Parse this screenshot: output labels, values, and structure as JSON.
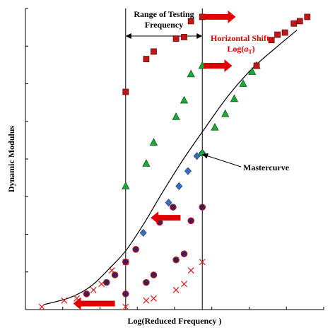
{
  "chart_data": {
    "type": "scatter",
    "title": "",
    "xlabel": "Log(Reduced Frequency )",
    "ylabel": "Dynamic Modulus",
    "xlim": [
      0,
      10
    ],
    "ylim": [
      0,
      10
    ],
    "x_ticks": 8,
    "y_ticks": 8,
    "grid": false,
    "testing_range": [
      3.36,
      5.93
    ],
    "annotations": {
      "range_title_line1": "Range of Testing",
      "range_title_line2": "Frequency",
      "shift_line1": "Horizontal Shift,",
      "shift_line2_prefix": "Log(",
      "shift_line2_italic": "a",
      "shift_line2_sub": "T",
      "shift_line2_suffix": ")",
      "mastercurve": "Mastercurve"
    },
    "mastercurve": [
      [
        0.6,
        0.16
      ],
      [
        1.5,
        0.4
      ],
      [
        2.2,
        0.78
      ],
      [
        2.9,
        1.45
      ],
      [
        3.4,
        2.0
      ],
      [
        4.0,
        2.9
      ],
      [
        4.6,
        3.9
      ],
      [
        5.3,
        5.0
      ],
      [
        6.0,
        6.0
      ],
      [
        6.8,
        7.1
      ],
      [
        7.6,
        8.0
      ],
      [
        8.4,
        8.7
      ],
      [
        9.1,
        9.28
      ]
    ],
    "series": [
      {
        "marker": "x",
        "color": "#e02020",
        "original": [
          [
            3.36,
            0.09
          ],
          [
            4.05,
            0.3
          ],
          [
            4.3,
            0.37
          ],
          [
            5.05,
            0.65
          ],
          [
            5.32,
            0.85
          ],
          [
            5.55,
            1.3
          ],
          [
            5.93,
            1.58
          ]
        ],
        "shifted": [
          [
            0.55,
            0.09
          ],
          [
            1.3,
            0.3
          ],
          [
            1.72,
            0.37
          ],
          [
            2.28,
            0.65
          ],
          [
            2.55,
            0.85
          ],
          [
            2.9,
            1.3
          ],
          [
            3.36,
            1.58
          ]
        ]
      },
      {
        "marker": "circle",
        "color": "#3a2060",
        "original": [
          [
            3.36,
            0.52
          ],
          [
            4.05,
            0.9
          ],
          [
            4.3,
            1.15
          ],
          [
            5.05,
            1.65
          ],
          [
            5.32,
            1.85
          ],
          [
            5.55,
            2.95
          ],
          [
            5.93,
            3.4
          ]
        ],
        "shifted": [
          [
            2.05,
            0.52
          ],
          [
            2.72,
            0.9
          ],
          [
            3.0,
            1.15
          ],
          [
            3.36,
            1.58
          ],
          [
            3.7,
            2.0
          ],
          [
            4.5,
            2.9
          ],
          [
            4.95,
            3.4
          ]
        ]
      },
      {
        "marker": "diamond",
        "color": "#3a6bbb",
        "original": [],
        "shifted": [
          [
            3.95,
            2.55
          ],
          [
            4.8,
            3.55
          ],
          [
            5.15,
            4.1
          ],
          [
            5.45,
            4.6
          ],
          [
            5.75,
            5.1
          ],
          [
            5.93,
            5.2
          ]
        ]
      },
      {
        "marker": "triangle",
        "color": "#1ea83a",
        "original": [
          [
            3.36,
            4.1
          ],
          [
            4.05,
            4.85
          ],
          [
            4.3,
            5.55
          ],
          [
            5.05,
            6.4
          ],
          [
            5.32,
            6.95
          ],
          [
            5.55,
            7.82
          ],
          [
            5.93,
            8.1
          ]
        ],
        "shifted": [
          [
            5.93,
            5.2
          ],
          [
            6.35,
            6.05
          ],
          [
            6.7,
            6.5
          ],
          [
            7.0,
            7.0
          ],
          [
            7.3,
            7.5
          ],
          [
            7.6,
            7.9
          ],
          [
            7.75,
            8.1
          ]
        ]
      },
      {
        "marker": "square",
        "color": "#c01818",
        "original": [
          [
            3.36,
            7.23
          ],
          [
            4.05,
            8.32
          ],
          [
            4.3,
            8.57
          ],
          [
            5.05,
            9.0
          ],
          [
            5.32,
            9.05
          ],
          [
            5.55,
            9.58
          ],
          [
            5.93,
            9.72
          ]
        ],
        "shifted": [
          [
            7.75,
            8.1
          ],
          [
            8.25,
            8.95
          ],
          [
            8.45,
            9.13
          ],
          [
            8.7,
            9.2
          ],
          [
            9.0,
            9.5
          ],
          [
            9.2,
            9.58
          ],
          [
            9.45,
            9.72
          ]
        ]
      }
    ],
    "arrows": [
      {
        "color": "#e00000",
        "direction": "right",
        "x": 6.0,
        "y": 9.72,
        "length": 1.05
      },
      {
        "color": "#e00000",
        "direction": "right",
        "x": 5.98,
        "y": 8.1,
        "length": 0.95
      },
      {
        "color": "#e00000",
        "direction": "left",
        "x": 5.2,
        "y": 3.05,
        "length": 1.0
      },
      {
        "color": "#e00000",
        "direction": "left",
        "x": 3.0,
        "y": 0.2,
        "length": 1.4
      }
    ]
  }
}
